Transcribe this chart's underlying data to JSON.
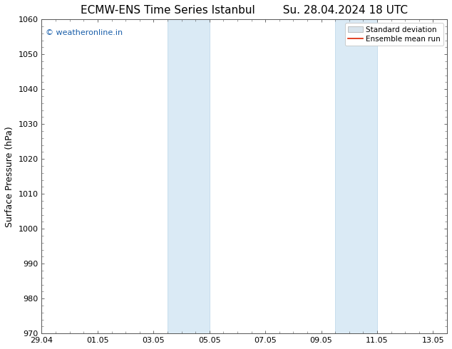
{
  "title_left": "ECMW-ENS Time Series Istanbul",
  "title_right": "Su. 28.04.2024 18 UTC",
  "ylabel": "Surface Pressure (hPa)",
  "ylim": [
    970,
    1060
  ],
  "yticks": [
    970,
    980,
    990,
    1000,
    1010,
    1020,
    1030,
    1040,
    1050,
    1060
  ],
  "xlim_start": 0,
  "xlim_end": 14,
  "xtick_labels": [
    "29.04",
    "01.05",
    "03.05",
    "05.05",
    "07.05",
    "09.05",
    "11.05",
    "13.05"
  ],
  "xtick_positions": [
    0,
    2,
    4,
    6,
    8,
    10,
    12,
    14
  ],
  "shaded_bands": [
    {
      "x_start": 4.5,
      "x_end": 6.0
    },
    {
      "x_start": 10.5,
      "x_end": 12.0
    }
  ],
  "shaded_color": "#daeaf5",
  "shaded_edge_color": "#b8d4e8",
  "watermark_text": "© weatheronline.in",
  "watermark_color": "#1a5faa",
  "legend_std_label": "Standard deviation",
  "legend_ens_label": "Ensemble mean run",
  "legend_std_facecolor": "#d8e4ec",
  "legend_std_edgecolor": "#aaaaaa",
  "legend_ens_color": "#dd2200",
  "spine_color": "#555555",
  "background_color": "#ffffff",
  "title_fontsize": 11,
  "axis_label_fontsize": 9,
  "tick_fontsize": 8,
  "watermark_fontsize": 8,
  "legend_fontsize": 7.5
}
